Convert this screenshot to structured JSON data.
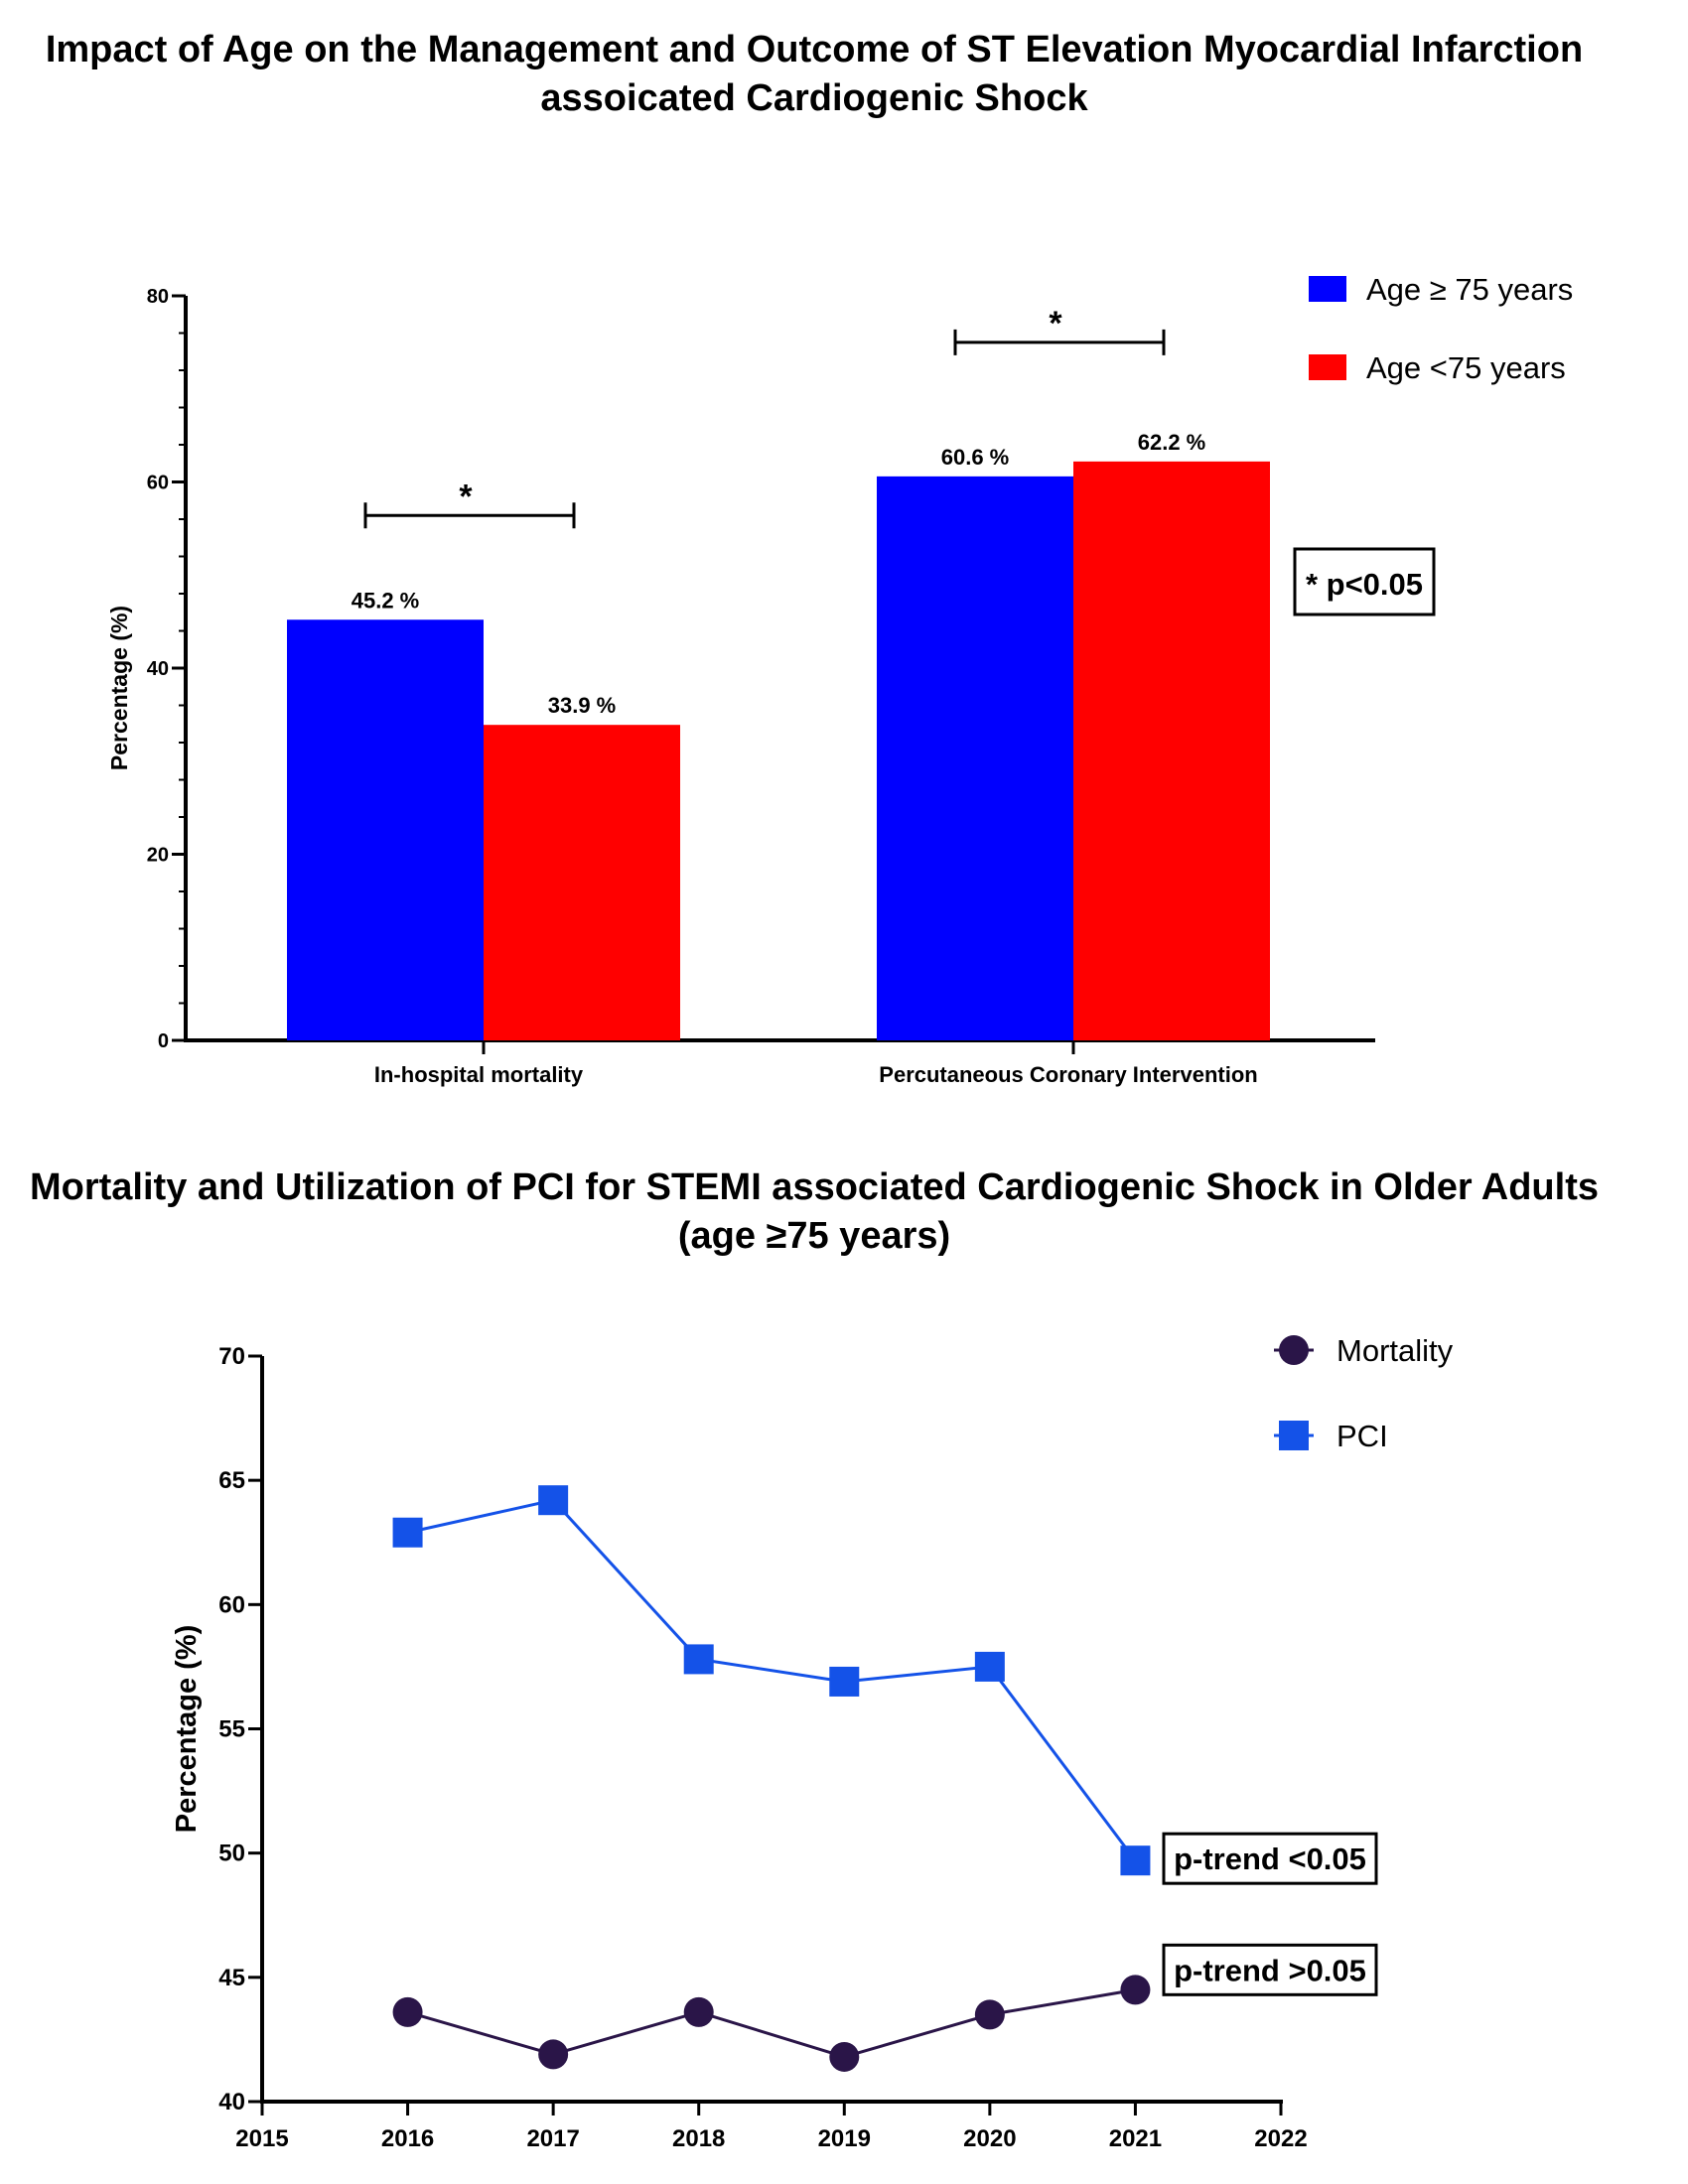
{
  "chart_data": [
    {
      "type": "bar",
      "title": "Impact of Age on the Management and Outcome of ST  Elevation Myocardial Infarction assoicated Cardiogenic Shock",
      "ylabel": "Percentage (%)",
      "xlabel": "",
      "ylim": [
        0,
        80
      ],
      "yticks": [
        0,
        20,
        40,
        60,
        80
      ],
      "categories": [
        "In-hospital mortality",
        "Percutaneous Coronary Intervention"
      ],
      "series": [
        {
          "name": "Age ≥ 75 years",
          "color": "#0000ff",
          "values": [
            45.2,
            60.6
          ],
          "labels": [
            "45.2 %",
            "60.6 %"
          ]
        },
        {
          "name": "Age <75 years",
          "color": "#ff0000",
          "values": [
            33.9,
            62.2
          ],
          "labels": [
            "33.9 %",
            "62.2 %"
          ]
        }
      ],
      "significance": [
        "*",
        "*"
      ],
      "note": "* p<0.05",
      "legend_position": "top-right"
    },
    {
      "type": "line",
      "title": "Mortality and Utilization of PCI for STEMI associated Cardiogenic Shock in Older Adults (age ≥75 years)",
      "ylabel": "Percentage (%)",
      "xlabel": "",
      "xlim": [
        2015,
        2022
      ],
      "xticks": [
        2015,
        2016,
        2017,
        2018,
        2019,
        2020,
        2021,
        2022
      ],
      "ylim": [
        40,
        70
      ],
      "yticks": [
        40,
        45,
        50,
        55,
        60,
        65,
        70
      ],
      "x": [
        2016,
        2017,
        2018,
        2019,
        2020,
        2021
      ],
      "series": [
        {
          "name": "Mortality",
          "marker": "circle",
          "color": "#2a1548",
          "values": [
            43.6,
            41.9,
            43.6,
            41.8,
            43.5,
            44.5
          ],
          "annotation": "p-trend >0.05"
        },
        {
          "name": "PCI",
          "marker": "square",
          "color": "#1452e8",
          "values": [
            62.9,
            64.2,
            57.8,
            56.9,
            57.5,
            49.7
          ],
          "annotation": "p-trend <0.05"
        }
      ],
      "legend_position": "top-right"
    }
  ]
}
